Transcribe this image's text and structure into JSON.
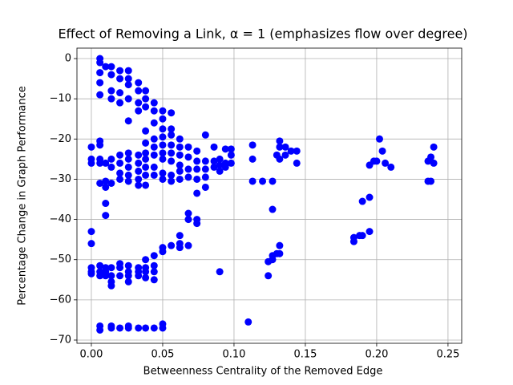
{
  "chart_data": {
    "type": "scatter",
    "title": "Effect of Removing a Link, α = 1 (emphasizes flow over degree)",
    "x_label": "Betweenness Centrality of the Removed Edge",
    "y_label": "Percentage Change in Graph Performance",
    "color": "#0000ff",
    "grid": true,
    "xlim": [
      -0.0101,
      0.2596
    ],
    "ylim": [
      -70.8,
      2.6
    ],
    "xticks": [
      {
        "value": 0,
        "label": "0.00"
      },
      {
        "value": 0.05,
        "label": "0.05"
      },
      {
        "value": 0.1,
        "label": "0.10"
      },
      {
        "value": 0.15,
        "label": "0.15"
      },
      {
        "value": 0.2,
        "label": "0.20"
      },
      {
        "value": 0.25,
        "label": "0.25"
      }
    ],
    "yticks": [
      0,
      {
        "value": -10,
        "label": "−10"
      },
      {
        "value": -20,
        "label": "−20"
      },
      {
        "value": -30,
        "label": "−30"
      },
      {
        "value": -40,
        "label": "−40"
      },
      {
        "value": -50,
        "label": "−50"
      },
      {
        "value": -60,
        "label": "−60"
      },
      {
        "value": -70,
        "label": "−70"
      }
    ],
    "x": [
      0,
      0,
      0,
      0,
      0,
      0,
      0,
      0,
      0.006,
      0.006,
      0.006,
      0.006,
      0.006,
      0.006,
      0.006,
      0.006,
      0.006,
      0.006,
      0.006,
      0.006,
      0.006,
      0.006,
      0.006,
      0.01,
      0.01,
      0.01,
      0.01,
      0.01,
      0.01,
      0.01,
      0.01,
      0.01,
      0.014,
      0.014,
      0.014,
      0.014,
      0.014,
      0.014,
      0.014,
      0.014,
      0.014,
      0.014,
      0.014,
      0.014,
      0.014,
      0.02,
      0.02,
      0.02,
      0.02,
      0.02,
      0.02,
      0.02,
      0.02,
      0.02,
      0.02,
      0.02,
      0.02,
      0.026,
      0.026,
      0.026,
      0.026,
      0.026,
      0.026,
      0.026,
      0.026,
      0.026,
      0.026,
      0.026,
      0.026,
      0.026,
      0.026,
      0.026,
      0.026,
      0.033,
      0.033,
      0.033,
      0.033,
      0.033,
      0.033,
      0.033,
      0.033,
      0.033,
      0.033,
      0.033,
      0.033,
      0.033,
      0.038,
      0.038,
      0.038,
      0.038,
      0.038,
      0.038,
      0.038,
      0.038,
      0.038,
      0.038,
      0.038,
      0.038,
      0.038,
      0.038,
      0.038,
      0.044,
      0.044,
      0.044,
      0.044,
      0.044,
      0.044,
      0.044,
      0.044,
      0.044,
      0.044,
      0.044,
      0.044,
      0.044,
      0.05,
      0.05,
      0.05,
      0.05,
      0.05,
      0.05,
      0.05,
      0.05,
      0.05,
      0.05,
      0.05,
      0.05,
      0.05,
      0.056,
      0.056,
      0.056,
      0.056,
      0.056,
      0.056,
      0.056,
      0.056,
      0.056,
      0.062,
      0.062,
      0.062,
      0.062,
      0.062,
      0.062,
      0.062,
      0.062,
      0.062,
      0.068,
      0.068,
      0.068,
      0.068,
      0.068,
      0.068,
      0.068,
      0.074,
      0.074,
      0.074,
      0.074,
      0.074,
      0.074,
      0.074,
      0.08,
      0.08,
      0.08,
      0.08,
      0.08,
      0.086,
      0.086,
      0.086,
      0.09,
      0.09,
      0.09,
      0.09,
      0.094,
      0.094,
      0.094,
      0.098,
      0.098,
      0.098,
      0.11,
      0.113,
      0.113,
      0.113,
      0.12,
      0.124,
      0.124,
      0.127,
      0.127,
      0.127,
      0.127,
      0.13,
      0.13,
      0.132,
      0.132,
      0.132,
      0.132,
      0.132,
      0.136,
      0.136,
      0.14,
      0.144,
      0.144,
      0.184,
      0.184,
      0.188,
      0.19,
      0.19,
      0.195,
      0.195,
      0.195,
      0.198,
      0.2,
      0.202,
      0.204,
      0.206,
      0.21,
      0.236,
      0.236,
      0.238,
      0.238,
      0.24,
      0.24
    ],
    "values": [
      -22,
      -25,
      -26,
      -43,
      -46,
      -52,
      -53,
      -53.5,
      0,
      -1,
      -3.5,
      -6,
      -9,
      -20.5,
      -21.5,
      -25,
      -26,
      -31,
      -51.5,
      -53,
      -54,
      -66.5,
      -67.5,
      -2,
      -26,
      -30.5,
      -32,
      -36,
      -39,
      -52,
      -53,
      -54,
      -2,
      -4,
      -8,
      -10,
      -25,
      -27,
      -31,
      -52,
      -54,
      -55.5,
      -56.5,
      -67,
      -66.5,
      -3,
      -5,
      -8.5,
      -11,
      -24,
      -26,
      -28.5,
      -30,
      -51,
      -52,
      -54,
      -67,
      -3,
      -5,
      -6.5,
      -10,
      -15.5,
      -23.5,
      -25,
      -27,
      -29,
      -30.5,
      -51.5,
      -53,
      -54,
      -55.5,
      -66.5,
      -67,
      -6,
      -8,
      -11,
      -13,
      -24,
      -26,
      -28,
      -30,
      -31.5,
      -52,
      -53,
      -54,
      -67,
      -8,
      -10,
      -12,
      -18,
      -21,
      -23.5,
      -25,
      -27,
      -29,
      -31.5,
      -50,
      -52,
      -53,
      -54.5,
      -67,
      -11,
      -13,
      -16,
      -20,
      -22,
      -24,
      -27,
      -29,
      -49,
      -51.5,
      -53,
      -55,
      -67,
      -13,
      -15,
      -17.5,
      -19.5,
      -21.5,
      -23.5,
      -25,
      -28.5,
      -30,
      -47,
      -48,
      -66,
      -67,
      -13.5,
      -17.5,
      -19,
      -21.5,
      -23.5,
      -25.5,
      -29,
      -30.5,
      -46.5,
      -20,
      -22,
      -24,
      -26.5,
      -28,
      -30,
      -44,
      -46,
      -47,
      -22,
      -24.5,
      -27.5,
      -29.5,
      -38.5,
      -40,
      -46.5,
      -23,
      -25.5,
      -27.5,
      -30,
      -33.5,
      -40,
      -41,
      -19,
      -25.5,
      -27.5,
      -29.5,
      -32,
      -22,
      -25.5,
      -27,
      -25,
      -26.5,
      -28,
      -53,
      -22.5,
      -26,
      -27,
      -22.5,
      -24,
      -26,
      -65.5,
      -21.5,
      -25,
      -30.5,
      -30.5,
      -50.5,
      -54,
      -30.5,
      -37.5,
      -49,
      -50,
      -24,
      -48.5,
      -20.5,
      -22,
      -25,
      -48.5,
      -46.5,
      -22,
      -24,
      -23,
      -23,
      -26,
      -44.5,
      -45.5,
      -44,
      -44,
      -35.5,
      -43,
      -34.5,
      -26.5,
      -25.5,
      -25.5,
      -20,
      -23,
      -26,
      -27,
      -25.5,
      -30.5,
      -30.5,
      -24.5,
      -26,
      -22
    ]
  }
}
